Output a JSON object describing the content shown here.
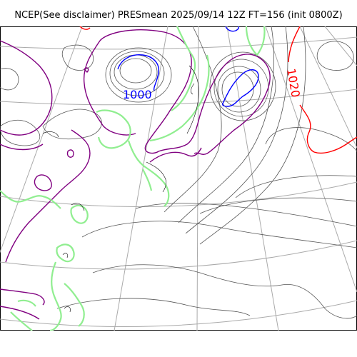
{
  "title": "NCEP(See disclaimer) PRESmean 2025/09/14 12Z FT=156 (init 0800Z)",
  "isobar_labels": [
    {
      "text": "1000",
      "color": "#0000ff"
    },
    {
      "text": "1020",
      "color": "#ff0000"
    }
  ],
  "colors": {
    "coastline": "#000000",
    "graticule": "#aaaaaa",
    "isobar_gray": "#555555",
    "isobar_low": "#0000ff",
    "isobar_high": "#ff0000",
    "contour_purple": "#800080",
    "contour_green": "#90ee90"
  }
}
